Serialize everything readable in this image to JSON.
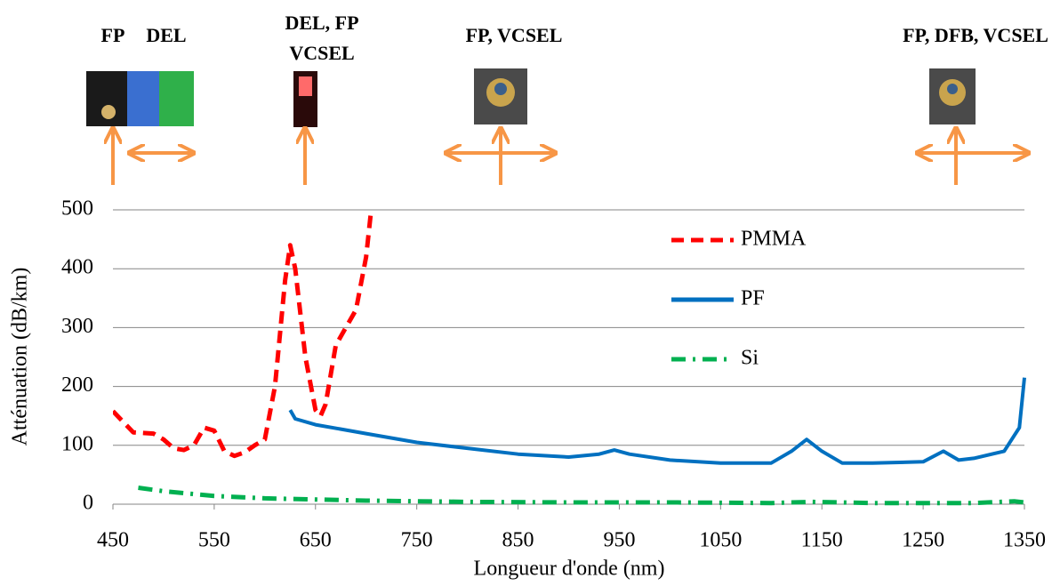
{
  "chart_data": {
    "type": "line",
    "xlabel": "Longueur d'onde (nm)",
    "ylabel": "Atténuation (dB/km)",
    "xlim": [
      450,
      1350
    ],
    "xticks": [
      450,
      550,
      650,
      750,
      850,
      950,
      1050,
      1150,
      1250,
      1350
    ],
    "ylim": [
      0,
      500
    ],
    "yticks": [
      0,
      100,
      200,
      300,
      400,
      500
    ],
    "grid": true,
    "legend": "upper-right",
    "annotations": [
      {
        "lines": [
          "FP"
        ]
      },
      {
        "lines": [
          "DEL"
        ]
      },
      {
        "lines": [
          "DEL, FP",
          "VCSEL"
        ]
      },
      {
        "lines": [
          "FP, VCSEL"
        ]
      },
      {
        "lines": [
          "FP, DFB, VCSEL"
        ]
      }
    ],
    "series": [
      {
        "name": "PMMA",
        "color": "#ff0000",
        "dash": "dashed",
        "x": [
          450,
          460,
          470,
          490,
          500,
          510,
          520,
          530,
          540,
          550,
          560,
          570,
          580,
          590,
          600,
          610,
          620,
          625,
          630,
          640,
          650,
          655,
          660,
          670,
          680,
          690,
          700,
          705
        ],
        "values": [
          158,
          140,
          122,
          120,
          110,
          95,
          92,
          100,
          130,
          125,
          90,
          82,
          88,
          100,
          110,
          200,
          380,
          440,
          400,
          250,
          160,
          150,
          170,
          270,
          300,
          330,
          420,
          500
        ]
      },
      {
        "name": "PF",
        "color": "#0070c0",
        "dash": "solid",
        "x": [
          625,
          630,
          650,
          700,
          750,
          800,
          850,
          900,
          930,
          945,
          960,
          1000,
          1050,
          1100,
          1120,
          1135,
          1150,
          1170,
          1200,
          1250,
          1270,
          1285,
          1300,
          1330,
          1345,
          1350
        ],
        "values": [
          160,
          145,
          135,
          120,
          105,
          95,
          85,
          80,
          85,
          92,
          85,
          75,
          70,
          70,
          90,
          110,
          90,
          70,
          70,
          72,
          90,
          75,
          78,
          90,
          130,
          215
        ]
      },
      {
        "name": "Si",
        "color": "#00b050",
        "dash": "dashdot",
        "x": [
          475,
          500,
          550,
          600,
          650,
          700,
          800,
          900,
          1000,
          1100,
          1140,
          1200,
          1300,
          1340,
          1350
        ],
        "values": [
          28,
          22,
          14,
          10,
          8,
          6,
          4,
          3,
          3,
          2,
          4,
          2,
          2,
          5,
          3
        ]
      }
    ]
  }
}
